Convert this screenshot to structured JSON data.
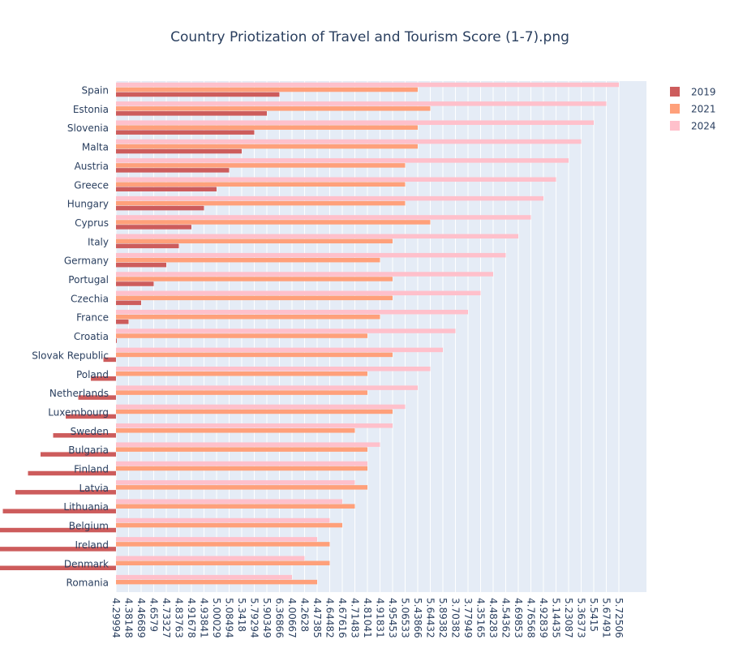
{
  "chart_data": {
    "type": "bar",
    "orientation": "horizontal",
    "title": "Country Priotization of Travel and Tourism Score (1-7).png",
    "xlabel": "",
    "ylabel": "",
    "grid": true,
    "legend_position": "top-right",
    "x_tick_labels": [
      "4.29994",
      "4.38148",
      "4.46689",
      "4.6579",
      "4.73327",
      "4.83763",
      "4.91678",
      "4.93841",
      "5.00029",
      "5.08494",
      "5.3418",
      "5.79294",
      "5.90349",
      "6.36866",
      "4.00667",
      "4.2628",
      "4.47385",
      "4.64482",
      "4.67616",
      "4.71483",
      "4.81041",
      "4.91831",
      "4.95453",
      "5.06533",
      "5.43866",
      "5.64432",
      "5.89382",
      "3.70382",
      "3.77949",
      "4.35165",
      "4.48283",
      "4.54362",
      "4.69853",
      "4.76568",
      "4.92839",
      "5.14435",
      "5.23087",
      "5.36373",
      "5.5415",
      "5.67491",
      "5.72506"
    ],
    "categories": [
      "Spain",
      "Estonia",
      "Slovenia",
      "Malta",
      "Austria",
      "Greece",
      "Hungary",
      "Cyprus",
      "Italy",
      "Germany",
      "Portugal",
      "Czechia",
      "France",
      "Croatia",
      "Slovak Republic",
      "Poland",
      "Netherlands",
      "Luxembourg",
      "Sweden",
      "Bulgaria",
      "Finland",
      "Latvia",
      "Lithuania",
      "Belgium",
      "Ireland",
      "Denmark",
      "Romania"
    ],
    "series": [
      {
        "name": "2019",
        "color": "#CD5C5C",
        "values": [
          13,
          12,
          11,
          10,
          9,
          8,
          7,
          6,
          5,
          4,
          3,
          2,
          1,
          0,
          -1,
          -2,
          -3,
          -4,
          -5,
          -6,
          -7,
          -8,
          -9,
          -10,
          -11,
          -12,
          null
        ]
      },
      {
        "name": "2021",
        "color": "#FFA07A",
        "values": [
          24,
          25,
          24,
          24,
          23,
          23,
          23,
          25,
          22,
          21,
          22,
          22,
          21,
          20,
          22,
          20,
          20,
          22,
          19,
          20,
          20,
          20,
          19,
          18,
          17,
          17,
          16
        ]
      },
      {
        "name": "2024",
        "color": "#FFC0CB",
        "values": [
          40,
          39,
          38,
          37,
          36,
          35,
          34,
          33,
          32,
          31,
          30,
          29,
          28,
          27,
          26,
          25,
          24,
          23,
          22,
          21,
          20,
          19,
          18,
          17,
          16,
          15,
          14
        ]
      }
    ]
  }
}
